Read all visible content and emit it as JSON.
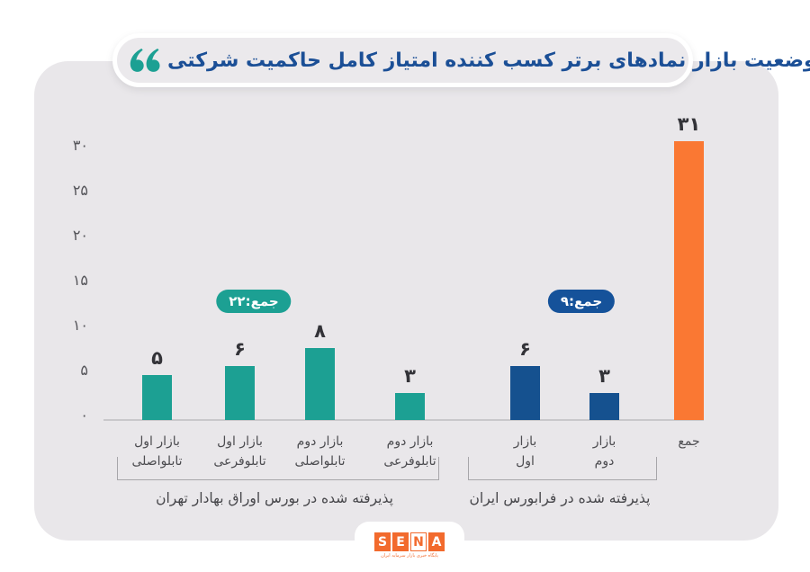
{
  "title": {
    "text": "وضعیت بازار نمادهای برتر کسب کننده امتیاز کامل حاکمیت شرکتی"
  },
  "colors": {
    "teal": "#1ca093",
    "blue": "#15518f",
    "blue_badge": "#15529a",
    "orange": "#fa7833",
    "logo_orange": "#f26a2d",
    "card_bg": "#e9e7ea",
    "pill_bg": "#ebe9ec",
    "title_text": "#1b4f96"
  },
  "y_axis": {
    "ticks": [
      {
        "label": "۳۰",
        "value": 30
      },
      {
        "label": "۲۵",
        "value": 25
      },
      {
        "label": "۲۰",
        "value": 20
      },
      {
        "label": "۱۵",
        "value": 15
      },
      {
        "label": "۱۰",
        "value": 10
      },
      {
        "label": "۵",
        "value": 5
      },
      {
        "label": "۰",
        "value": 0
      }
    ]
  },
  "chart_data": {
    "type": "bar",
    "title": "وضعیت بازار نمادهای برتر کسب کننده امتیاز کامل حاکمیت شرکتی",
    "ylim": [
      0,
      31
    ],
    "y_ticks": [
      0,
      5,
      10,
      15,
      20,
      25,
      30
    ],
    "grid": false,
    "legend": false,
    "groups": [
      {
        "name": "پذیرفته شده در بورس اوراق بهادار تهران",
        "total": 22,
        "total_label": "جمع:۲۲",
        "color_key": "teal",
        "badge_color_key": "teal",
        "bars": [
          {
            "category": "بازار اول تابلواصلی",
            "label_lines": [
              "بازار اول",
              "تابلواصلی"
            ],
            "value": 5,
            "value_label": "۵"
          },
          {
            "category": "بازار اول تابلوفرعی",
            "label_lines": [
              "بازار اول",
              "تابلوفرعی"
            ],
            "value": 6,
            "value_label": "۶"
          },
          {
            "category": "بازار دوم تابلواصلی",
            "label_lines": [
              "بازار دوم",
              "تابلواصلی"
            ],
            "value": 8,
            "value_label": "۸"
          },
          {
            "category": "بازار دوم تابلوفرعی",
            "label_lines": [
              "بازار دوم",
              "تابلوفرعی"
            ],
            "value": 3,
            "value_label": "۳"
          }
        ]
      },
      {
        "name": "پذیرفته شده در فرابورس ایران",
        "total": 9,
        "total_label": "جمع:۹",
        "color_key": "blue",
        "badge_color_key": "blue_badge",
        "bars": [
          {
            "category": "بازار اول",
            "label_lines": [
              "بازار",
              "اول"
            ],
            "value": 6,
            "value_label": "۶"
          },
          {
            "category": "بازار دوم",
            "label_lines": [
              "بازار",
              "دوم"
            ],
            "value": 3,
            "value_label": "۳"
          }
        ]
      },
      {
        "name": "جمع",
        "color_key": "orange",
        "bars": [
          {
            "category": "جمع",
            "label_lines": [
              "جمع"
            ],
            "value": 31,
            "value_label": "۳۱"
          }
        ]
      }
    ]
  },
  "logo": {
    "letters": [
      "S",
      "E",
      "N",
      "A"
    ],
    "tagline": "پایگاه خبری بازار سرمایه ایران"
  }
}
